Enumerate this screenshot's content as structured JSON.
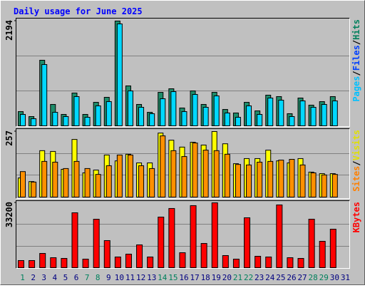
{
  "chart_data": {
    "type": "bar",
    "title": "Daily usage for June 2025",
    "categories": [
      "1",
      "2",
      "3",
      "4",
      "5",
      "6",
      "7",
      "8",
      "9",
      "10",
      "11",
      "12",
      "13",
      "14",
      "15",
      "16",
      "17",
      "18",
      "19",
      "20",
      "21",
      "22",
      "23",
      "24",
      "25",
      "26",
      "27",
      "28",
      "29",
      "30",
      "31"
    ],
    "category_colors": [
      "#00805c",
      "#000080",
      "#000080",
      "#000080",
      "#000080",
      "#000080",
      "#00805c",
      "#00805c",
      "#000080",
      "#000080",
      "#000080",
      "#000080",
      "#000080",
      "#00805c",
      "#00805c",
      "#000080",
      "#000080",
      "#000080",
      "#000080",
      "#000080",
      "#00805c",
      "#00805c",
      "#000080",
      "#000080",
      "#000080",
      "#000080",
      "#000080",
      "#00805c",
      "#00805c",
      "#000080",
      "#000080"
    ],
    "panels": [
      {
        "ylim": [
          0,
          2194
        ],
        "yticks": [
          2194
        ],
        "legend": [
          {
            "text": "Pages",
            "color": "#00c0ff"
          },
          {
            "text": "/",
            "color": "#000000"
          },
          {
            "text": "Files",
            "color": "#0040ff"
          },
          {
            "text": "/",
            "color": "#000000"
          },
          {
            "text": "Hits",
            "color": "#00805c"
          }
        ],
        "series": [
          {
            "name": "Hits",
            "color": "#1e8c6a",
            "values": [
              298,
              194,
              1373,
              448,
              239,
              687,
              239,
              492,
              597,
              2194,
              836,
              448,
              283,
              701,
              776,
              373,
              731,
              448,
              701,
              343,
              269,
              492,
              313,
              642,
              612,
              254,
              582,
              433,
              507,
              612,
              null
            ]
          },
          {
            "name": "Files",
            "color": "#00d8ff",
            "values": [
              239,
              149,
              1283,
              283,
              194,
              612,
              179,
              418,
              507,
              2134,
              731,
              388,
              254,
              567,
              716,
              298,
              657,
              388,
              627,
              269,
              179,
              418,
              239,
              582,
              537,
              194,
              522,
              388,
              448,
              522,
              null
            ]
          }
        ]
      },
      {
        "ylim": [
          0,
          257
        ],
        "yticks": [
          257
        ],
        "legend": [
          {
            "text": "Sites",
            "color": "#ff8000"
          },
          {
            "text": "/",
            "color": "#000000"
          },
          {
            "text": "Visits",
            "color": "#e0e000"
          }
        ],
        "series": [
          {
            "name": "Visits",
            "color": "#ffff00",
            "values": [
              75,
              61,
              182,
              179,
              109,
              226,
              95,
              106,
              165,
              142,
              168,
              134,
              134,
              251,
              223,
              196,
              215,
              204,
              257,
              209,
              131,
              151,
              151,
              184,
              142,
              134,
              151,
              98,
              92,
              92,
              null
            ]
          },
          {
            "name": "Sites",
            "color": "#ff9000",
            "values": [
              100,
              59,
              140,
              137,
              112,
              140,
              112,
              89,
              123,
              165,
              165,
              123,
              112,
              240,
              182,
              159,
              212,
              184,
              182,
              168,
              128,
              126,
              137,
              140,
              145,
              148,
              126,
              95,
              87,
              89,
              null
            ]
          }
        ]
      },
      {
        "ylim": [
          0,
          33200
        ],
        "yticks": [
          33200
        ],
        "legend": [
          {
            "text": "KBytes",
            "color": "#ff0000"
          }
        ],
        "series": [
          {
            "name": "KBytes",
            "color": "#ff0000",
            "values": [
              3650,
              3650,
              7300,
              5110,
              4745,
              28100,
              4380,
              24800,
              13870,
              5475,
              6935,
              11680,
              5475,
              25900,
              30300,
              7665,
              31760,
              12410,
              33200,
              6205,
              4380,
              25550,
              5840,
              5475,
              32120,
              5110,
              4745,
              24820,
              13505,
              19710,
              null
            ]
          }
        ]
      }
    ]
  }
}
